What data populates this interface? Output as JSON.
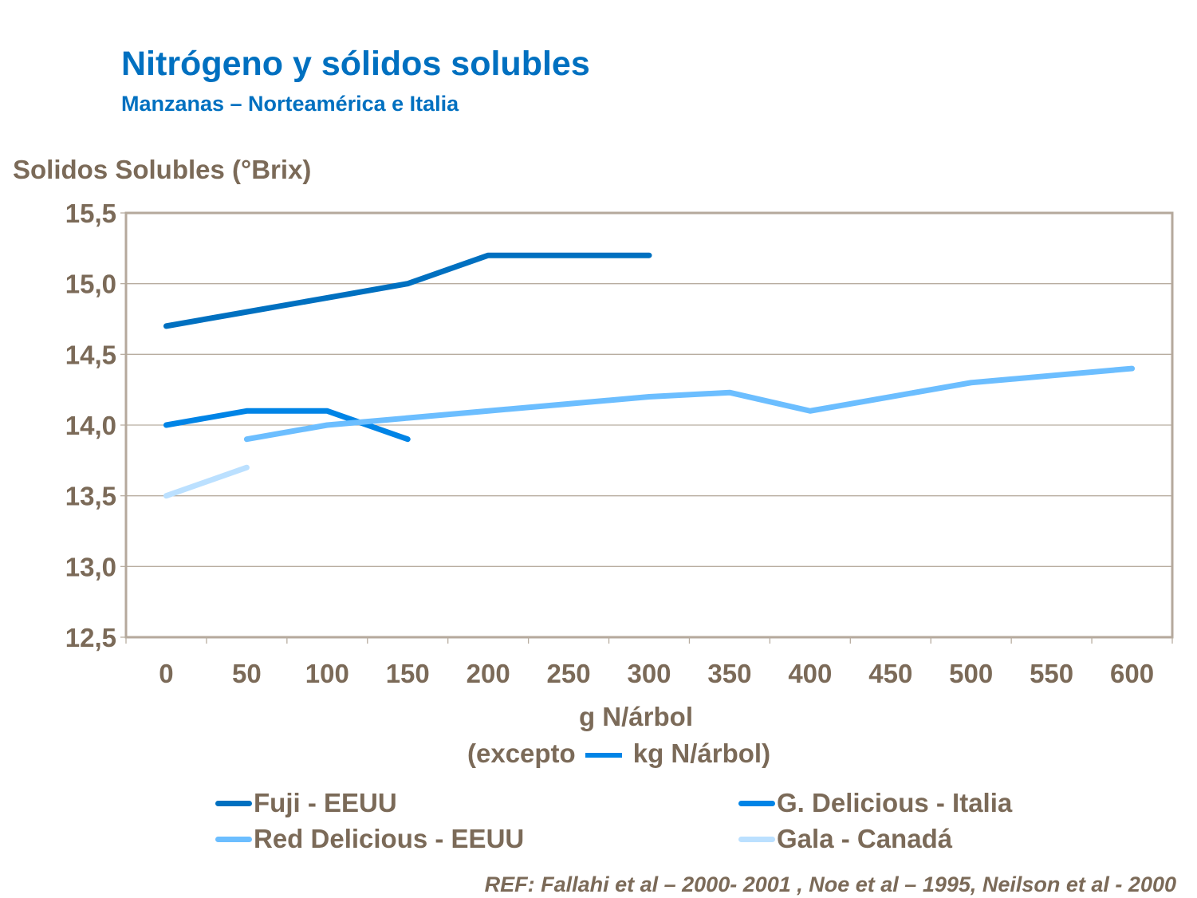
{
  "title": "Nitrógeno y sólidos solubles",
  "subtitle": "Manzanas – Norteamérica  e Italia",
  "reference": "REF: Fallahi et al – 2000- 2001 , Noe et al – 1995, Neilson et al - 2000",
  "chart_data": {
    "type": "line",
    "ylabel": "Solidos Solubles (°Brix)",
    "xlabel": "g N/árbol",
    "xlabel_note_before": "(excepto",
    "xlabel_note_after": "kg N/árbol)",
    "categories": [
      "0",
      "50",
      "100",
      "150",
      "200",
      "250",
      "300",
      "350",
      "400",
      "450",
      "500",
      "550",
      "600"
    ],
    "ylim": [
      12.5,
      15.5
    ],
    "yticks": [
      "12,5",
      "13,0",
      "13,5",
      "14,0",
      "14,5",
      "15,0",
      "15,5"
    ],
    "ytick_values": [
      12.5,
      13.0,
      13.5,
      14.0,
      14.5,
      15.0,
      15.5
    ],
    "grid": true,
    "legend_position": "bottom",
    "series": [
      {
        "name": "Fuji - EEUU",
        "color": "#0070C0",
        "values": [
          14.7,
          14.8,
          14.9,
          15.0,
          15.2,
          15.2,
          15.2,
          null,
          null,
          null,
          null,
          null,
          null
        ]
      },
      {
        "name": "G. Delicious - Italia",
        "color": "#0084E6",
        "values": [
          14.0,
          14.1,
          14.1,
          13.9,
          null,
          null,
          null,
          null,
          null,
          null,
          null,
          null,
          null
        ]
      },
      {
        "name": "Red Delicious - EEUU",
        "color": "#6CBEFF",
        "values": [
          null,
          13.9,
          14.0,
          14.05,
          14.1,
          14.15,
          14.2,
          14.23,
          14.1,
          14.2,
          14.3,
          14.35,
          14.4
        ]
      },
      {
        "name": "Gala - Canadá",
        "color": "#BBE0FF",
        "values": [
          13.5,
          13.7,
          null,
          null,
          null,
          null,
          null,
          null,
          null,
          null,
          null,
          null,
          null
        ]
      }
    ]
  }
}
